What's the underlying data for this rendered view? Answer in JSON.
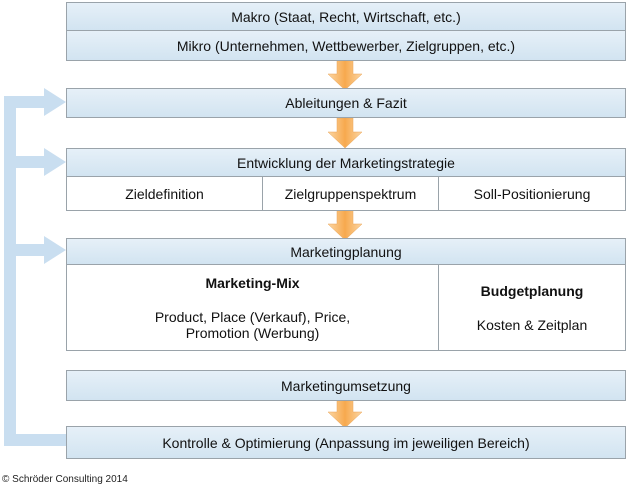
{
  "levels": {
    "makro": "Makro (Staat, Recht, Wirtschaft, etc.)",
    "mikro": "Mikro (Unternehmen, Wettbewerber, Zielgruppen, etc.)",
    "ableitungen": "Ableitungen & Fazit"
  },
  "strategie": {
    "title": "Entwicklung der Marketingstrategie",
    "cells": [
      "Zieldefinition",
      "Zielgruppenspektrum",
      "Soll-Positionierung"
    ]
  },
  "planung": {
    "title": "Marketingplanung",
    "mix": {
      "title": "Marketing-Mix",
      "text": "Product, Place (Verkauf), Price, Promotion (Werbung)"
    },
    "budget": {
      "title": "Budgetplanung",
      "text": "Kosten & Zeitplan"
    }
  },
  "umsetzung": "Marketingumsetzung",
  "kontrolle": "Kontrolle & Optimierung (Anpassung im jeweiligen Bereich)",
  "footer": "© Schröder Consulting 2014"
}
